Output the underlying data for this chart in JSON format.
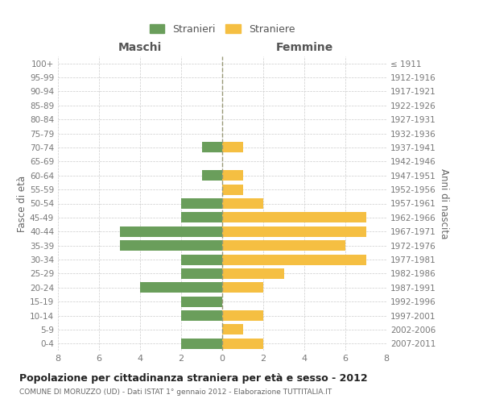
{
  "age_groups": [
    "0-4",
    "5-9",
    "10-14",
    "15-19",
    "20-24",
    "25-29",
    "30-34",
    "35-39",
    "40-44",
    "45-49",
    "50-54",
    "55-59",
    "60-64",
    "65-69",
    "70-74",
    "75-79",
    "80-84",
    "85-89",
    "90-94",
    "95-99",
    "100+"
  ],
  "birth_years": [
    "2007-2011",
    "2002-2006",
    "1997-2001",
    "1992-1996",
    "1987-1991",
    "1982-1986",
    "1977-1981",
    "1972-1976",
    "1967-1971",
    "1962-1966",
    "1957-1961",
    "1952-1956",
    "1947-1951",
    "1942-1946",
    "1937-1941",
    "1932-1936",
    "1927-1931",
    "1922-1926",
    "1917-1921",
    "1912-1916",
    "≤ 1911"
  ],
  "males": [
    2,
    0,
    2,
    2,
    4,
    2,
    2,
    5,
    5,
    2,
    2,
    0,
    1,
    0,
    1,
    0,
    0,
    0,
    0,
    0,
    0
  ],
  "females": [
    2,
    1,
    2,
    0,
    2,
    3,
    7,
    6,
    7,
    7,
    2,
    1,
    1,
    0,
    1,
    0,
    0,
    0,
    0,
    0,
    0
  ],
  "male_color": "#6a9e5b",
  "female_color": "#f5bf42",
  "title": "Popolazione per cittadinanza straniera per età e sesso - 2012",
  "subtitle": "COMUNE DI MORUZZO (UD) - Dati ISTAT 1° gennaio 2012 - Elaborazione TUTTITALIA.IT",
  "ylabel_left": "Fasce di età",
  "ylabel_right": "Anni di nascita",
  "xlabel_left": "Maschi",
  "xlabel_right": "Femmine",
  "legend_male": "Stranieri",
  "legend_female": "Straniere",
  "xlim": 8,
  "background_color": "#ffffff",
  "grid_color": "#cccccc",
  "bar_height": 0.75,
  "center_line_color": "#999977"
}
